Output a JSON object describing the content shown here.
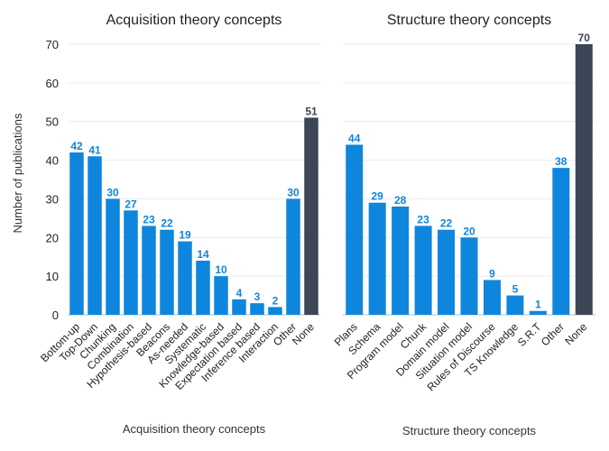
{
  "figure": {
    "ylabel": "Number of publications"
  },
  "colors": {
    "primary": "#0f86dd",
    "highlight": "#3c4656",
    "grid": "#ececec"
  },
  "chart_data": [
    {
      "type": "bar",
      "title": "Acquisition theory concepts",
      "xlabel": "Acquisition theory concepts",
      "ylabel": "Number of publications",
      "ylim": [
        0,
        70
      ],
      "yticks": [
        0,
        10,
        20,
        30,
        40,
        50,
        60,
        70
      ],
      "categories": [
        "Bottom-up",
        "Top-Down",
        "Chunking",
        "Combination",
        "Hypothesis-based",
        "Beacons",
        "As-needed",
        "Systematic",
        "Knowledge-based",
        "Expectation based",
        "Inference based",
        "Interaction",
        "Other",
        "None"
      ],
      "values": [
        42,
        41,
        30,
        27,
        23,
        22,
        19,
        14,
        10,
        4,
        3,
        2,
        30,
        51
      ],
      "value_labels": [
        "42",
        "41",
        "30",
        "27",
        "23",
        "22",
        "19",
        "14",
        "10",
        "4",
        "3",
        "2",
        "30",
        "51"
      ],
      "highlight_category": "None"
    },
    {
      "type": "bar",
      "title": "Structure theory concepts",
      "xlabel": "Structure theory concepts",
      "ylabel": "",
      "ylim": [
        0,
        70
      ],
      "yticks": [
        0,
        10,
        20,
        30,
        40,
        50,
        60,
        70
      ],
      "categories": [
        "Plans",
        "Schema",
        "Program model",
        "Chunk",
        "Domain model",
        "Situation model",
        "Rules of Discourse",
        "TS Knowledge",
        "S.R.T",
        "Other",
        "None"
      ],
      "values": [
        44,
        29,
        28,
        23,
        22,
        20,
        9,
        5,
        1,
        38,
        70
      ],
      "value_labels": [
        "44",
        "29",
        "28",
        "23",
        "22",
        "20",
        "9",
        "5",
        "1",
        "38",
        "70"
      ],
      "highlight_category": "None"
    }
  ]
}
